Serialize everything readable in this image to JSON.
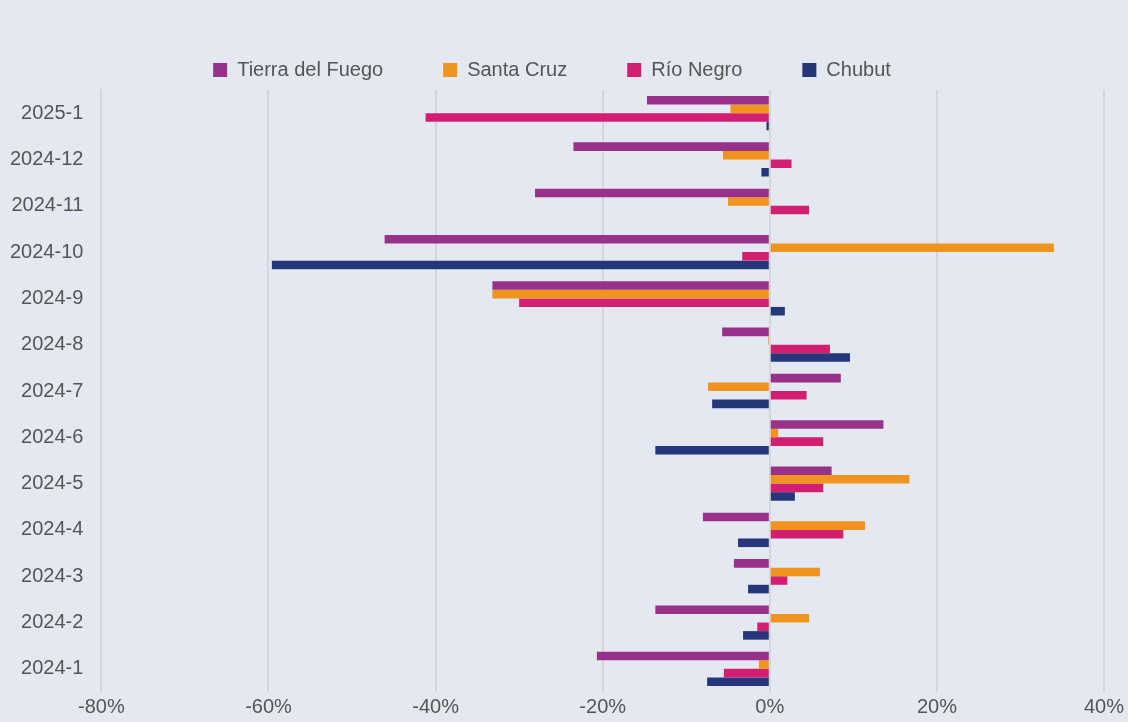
{
  "chart_data": {
    "type": "bar",
    "orientation": "horizontal",
    "categories": [
      "2025-1",
      "2024-12",
      "2024-11",
      "2024-10",
      "2024-9",
      "2024-8",
      "2024-7",
      "2024-6",
      "2024-5",
      "2024-4",
      "2024-3",
      "2024-2",
      "2024-1"
    ],
    "series": [
      {
        "name": "Tierra del Fuego",
        "color": "#973189",
        "values": [
          -14.7,
          -23.5,
          -28.1,
          -46.1,
          -33.2,
          -5.7,
          8.5,
          13.6,
          7.4,
          -8.0,
          -4.3,
          -13.7,
          -20.7
        ]
      },
      {
        "name": "Santa Cruz",
        "color": "#f0931f",
        "values": [
          -4.7,
          -5.6,
          -5.0,
          34.0,
          -33.2,
          -0.2,
          -7.4,
          1.0,
          16.7,
          11.4,
          6.0,
          4.7,
          -1.3
        ]
      },
      {
        "name": "Río Negro",
        "color": "#d21f72",
        "values": [
          -41.2,
          2.6,
          4.7,
          -3.3,
          -30.0,
          7.2,
          4.4,
          6.4,
          6.4,
          8.8,
          2.1,
          -1.5,
          -5.5
        ]
      },
      {
        "name": "Chubut",
        "color": "#25377a",
        "values": [
          -0.4,
          -1.0,
          0,
          -59.6,
          1.8,
          9.6,
          -6.9,
          -13.7,
          3.0,
          -3.8,
          -2.6,
          -3.2,
          -7.5
        ]
      }
    ],
    "xlim": [
      -80,
      40
    ],
    "xticks": [
      {
        "value": -80,
        "label": "-80%"
      },
      {
        "value": -60,
        "label": "-60%"
      },
      {
        "value": -40,
        "label": "-40%"
      },
      {
        "value": -20,
        "label": "-20%"
      },
      {
        "value": 0,
        "label": "0%"
      },
      {
        "value": 20,
        "label": "20%"
      },
      {
        "value": 40,
        "label": "40%"
      }
    ],
    "grid": "x",
    "legend": "top"
  }
}
